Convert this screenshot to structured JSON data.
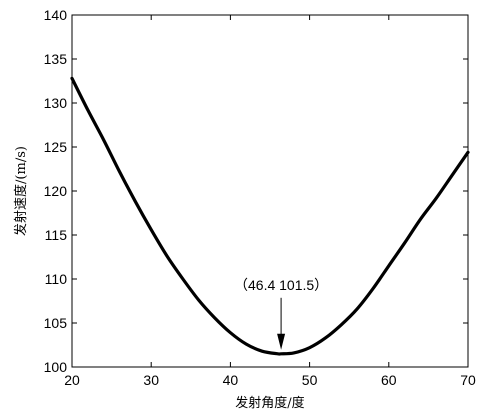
{
  "chart_data": {
    "type": "line",
    "xlabel": "发射角度/度",
    "ylabel": "发射速度/(m/s)",
    "xlim": [
      20,
      70
    ],
    "ylim": [
      100,
      140
    ],
    "xticks": [
      20,
      30,
      40,
      50,
      60,
      70
    ],
    "yticks": [
      100,
      105,
      110,
      115,
      120,
      125,
      130,
      135,
      140
    ],
    "grid": false,
    "series": [
      {
        "x": [
          20,
          22,
          24,
          26,
          28,
          30,
          32,
          34,
          36,
          38,
          40,
          42,
          44,
          46,
          46.4,
          48,
          50,
          52,
          54,
          56,
          58,
          60,
          62,
          64,
          66,
          68,
          70
        ],
        "y": [
          132.8,
          129.2,
          125.8,
          122.2,
          118.8,
          115.6,
          112.6,
          110.0,
          107.6,
          105.6,
          103.9,
          102.6,
          101.8,
          101.5,
          101.5,
          101.6,
          102.2,
          103.3,
          104.8,
          106.6,
          108.9,
          111.5,
          114.1,
          116.8,
          119.2,
          121.8,
          124.4
        ]
      }
    ],
    "annotation": {
      "text": "（46.4   101.5）",
      "x": 46.4,
      "y": 101.5
    }
  }
}
